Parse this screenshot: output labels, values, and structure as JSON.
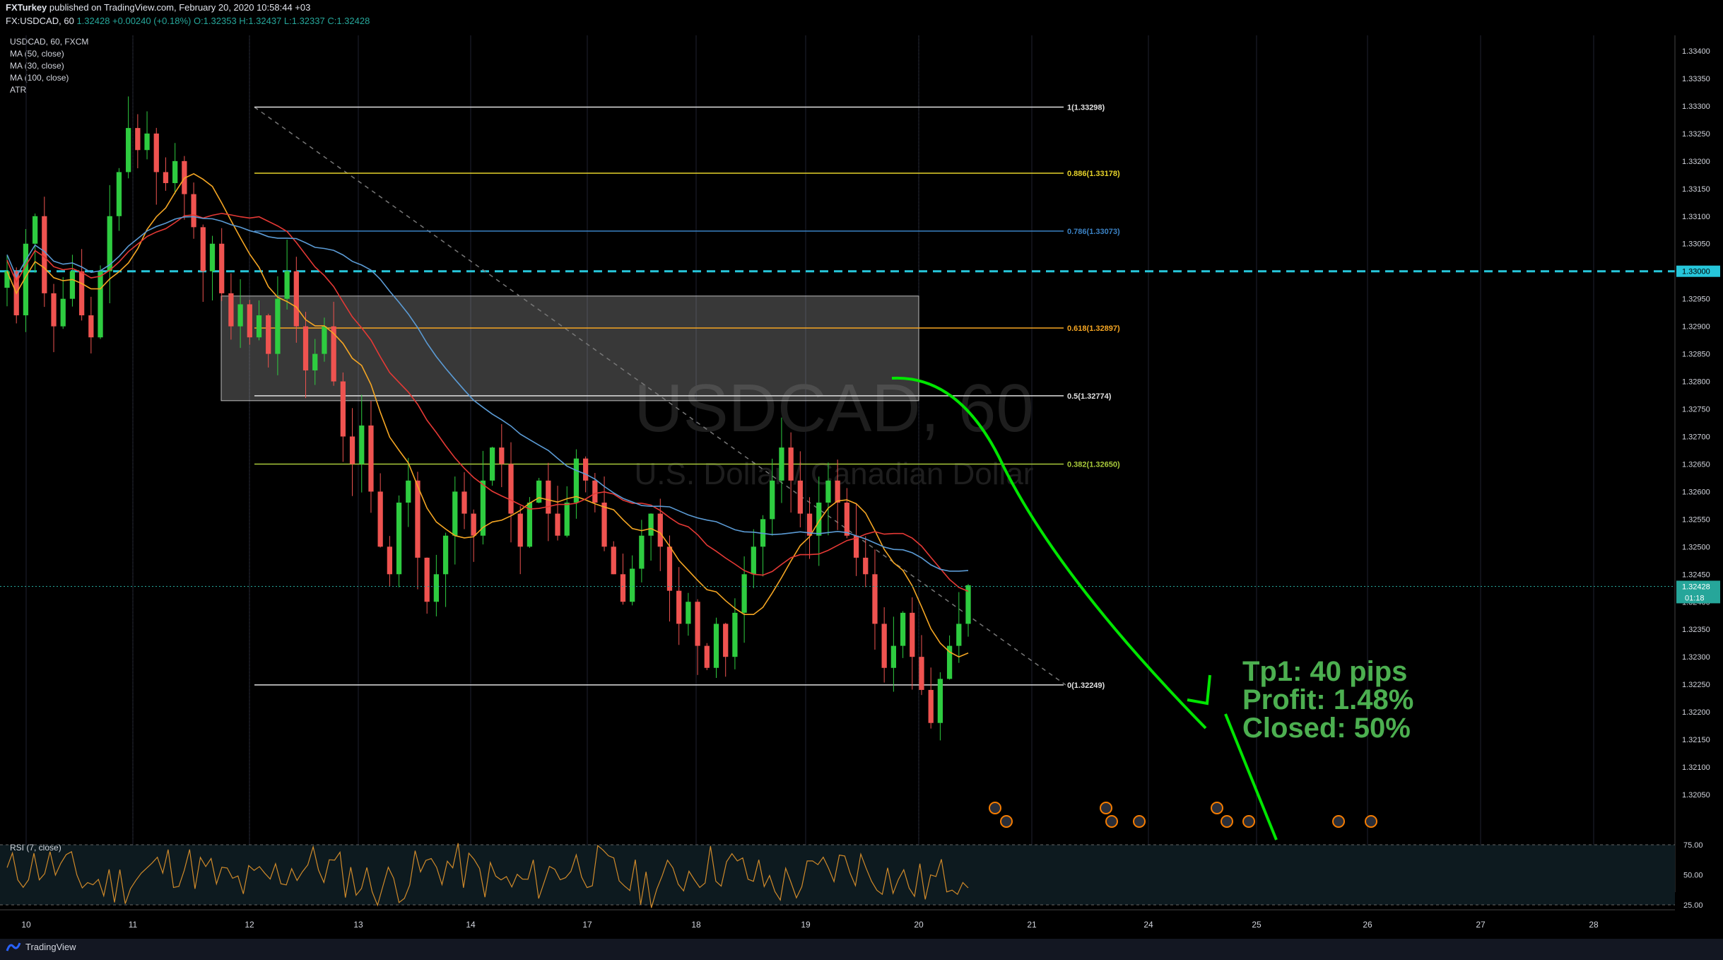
{
  "header": {
    "publisher_line": "FXTurkey published on TradingView.com, February 20, 2020 10:58:44 +03",
    "publisher": "FXTurkey",
    "symbol_line_prefix": "FX:USDCAD, 60",
    "ohlc": "1.32428 +0.00240 (+0.18%) O:1.32353 H:1.32437 L:1.32337 C:1.32428"
  },
  "legend": {
    "symbol": "USDCAD, 60, FXCM",
    "ma50": "MA (50, close)",
    "ma30": "MA (30, close)",
    "ma100": "MA (100, close)",
    "atr": "ATR",
    "rsi": "RSI (7, close)"
  },
  "watermark": {
    "symbol": "USDCAD, 60",
    "name": "U.S. Dollar / Canadian Dollar"
  },
  "annotation": {
    "line1": "Tp1: 40 pips",
    "line2": "Profit: 1.48%",
    "line3": "Closed: 50%"
  },
  "footer": {
    "brand": "TradingView"
  },
  "colors": {
    "background": "#000000",
    "bull": "#26a69a",
    "bear": "#ef5350",
    "ma50": "#e53935",
    "ma30": "#f5a623",
    "ma100": "#5b9bd5",
    "resistance": "#26c6da",
    "arrow": "#00e600",
    "rsi": "#d08a2a"
  },
  "chart_data": {
    "type": "candlestick",
    "symbol": "USDCAD",
    "timeframe": "60",
    "ylim": [
      1.32,
      1.3343
    ],
    "y_ticks": [
      "1.33400",
      "1.33350",
      "1.33300",
      "1.33250",
      "1.33200",
      "1.33150",
      "1.33100",
      "1.33050",
      "1.33000",
      "1.32950",
      "1.32900",
      "1.32850",
      "1.32800",
      "1.32750",
      "1.32700",
      "1.32650",
      "1.32600",
      "1.32550",
      "1.32500",
      "1.32450",
      "1.32400",
      "1.32350",
      "1.32300",
      "1.32250",
      "1.32200",
      "1.32150",
      "1.32100",
      "1.32050"
    ],
    "x_ticks": [
      "10",
      "11",
      "12",
      "13",
      "14",
      "17",
      "18",
      "19",
      "20",
      "21",
      "24",
      "25",
      "26",
      "27",
      "28"
    ],
    "last_price": "1.32428",
    "countdown": "01:18",
    "resistance_label": "1.33000",
    "resistance_level": 1.33,
    "fib_levels": [
      {
        "label": "1(1.33298)",
        "price": 1.33298,
        "color": "#e0e0e0"
      },
      {
        "label": "0.886(1.33178)",
        "price": 1.33178,
        "color": "#e6d22a"
      },
      {
        "label": "0.786(1.33073)",
        "price": 1.33073,
        "color": "#3b82c4"
      },
      {
        "label": "0.618(1.32897)",
        "price": 1.32897,
        "color": "#f5a623"
      },
      {
        "label": "0.5(1.32774)",
        "price": 1.32774,
        "color": "#e0e0e0"
      },
      {
        "label": "0.382(1.32650)",
        "price": 1.3265,
        "color": "#a8c93a"
      },
      {
        "label": "0(1.32249)",
        "price": 1.32249,
        "color": "#e0e0e0"
      }
    ],
    "zone": {
      "top": 1.32955,
      "bottom": 1.32765
    },
    "closes": [
      1.33,
      1.3292,
      1.3305,
      1.331,
      1.3296,
      1.329,
      1.3295,
      1.33,
      1.3292,
      1.3288,
      1.33,
      1.331,
      1.3318,
      1.3326,
      1.3322,
      1.3325,
      1.3318,
      1.3316,
      1.332,
      1.3314,
      1.3308,
      1.33,
      1.3305,
      1.3296,
      1.329,
      1.3294,
      1.3288,
      1.3292,
      1.3285,
      1.3295,
      1.33,
      1.329,
      1.3282,
      1.3285,
      1.329,
      1.328,
      1.327,
      1.3265,
      1.3272,
      1.326,
      1.325,
      1.3245,
      1.3258,
      1.3262,
      1.3248,
      1.324,
      1.3245,
      1.3252,
      1.326,
      1.3256,
      1.3252,
      1.3262,
      1.3268,
      1.3265,
      1.3256,
      1.325,
      1.3258,
      1.3262,
      1.3256,
      1.3252,
      1.3258,
      1.3266,
      1.3262,
      1.3258,
      1.325,
      1.3245,
      1.324,
      1.3246,
      1.3252,
      1.3256,
      1.325,
      1.3242,
      1.3236,
      1.324,
      1.3232,
      1.3228,
      1.3236,
      1.323,
      1.3238,
      1.3245,
      1.325,
      1.3255,
      1.3262,
      1.3268,
      1.3262,
      1.3256,
      1.3252,
      1.3258,
      1.3262,
      1.3258,
      1.3252,
      1.3248,
      1.3245,
      1.3236,
      1.3228,
      1.3232,
      1.3238,
      1.323,
      1.3224,
      1.3218,
      1.3226,
      1.3232,
      1.3236,
      1.3243
    ]
  }
}
